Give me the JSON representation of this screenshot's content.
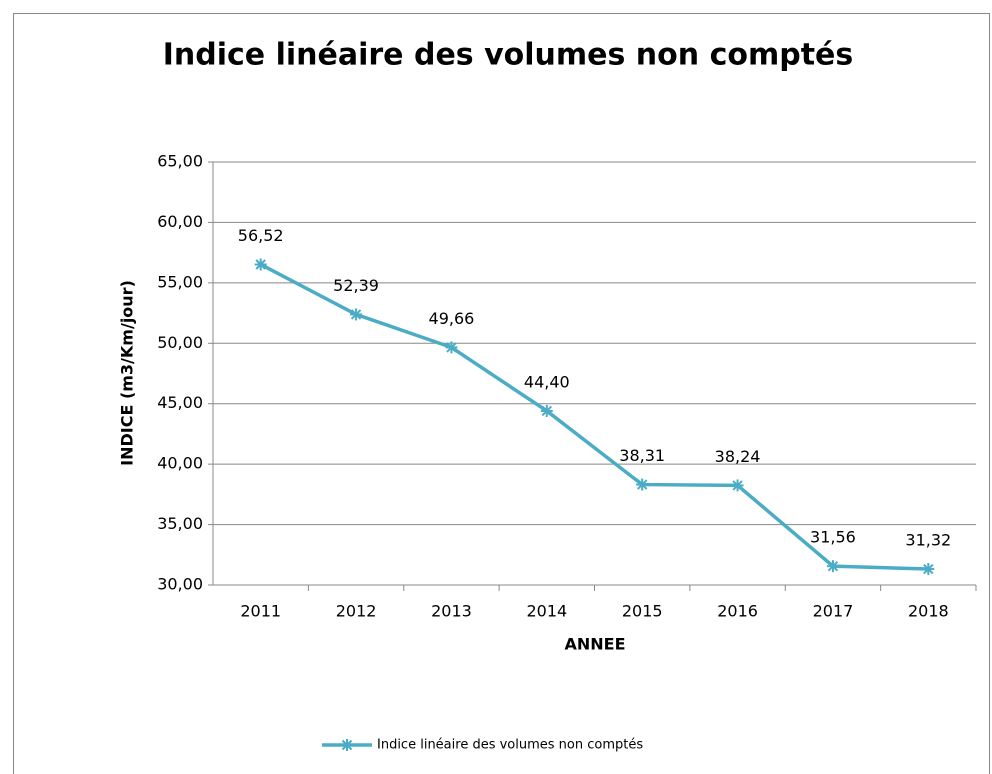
{
  "chart_data": {
    "type": "line",
    "title": "Indice linéaire des volumes non comptés",
    "x_label": "ANNEE",
    "y_label": "INDICE (m3/Km/jour)",
    "categories": [
      "2011",
      "2012",
      "2013",
      "2014",
      "2015",
      "2016",
      "2017",
      "2018"
    ],
    "series": [
      {
        "name": "Indice linéaire des volumes non comptés",
        "color": "#4bacc6",
        "values": [
          56.52,
          52.39,
          49.66,
          44.4,
          38.31,
          38.24,
          31.56,
          31.32
        ],
        "value_labels": [
          "56,52",
          "52,39",
          "49,66",
          "44,40",
          "38,31",
          "38,24",
          "31,56",
          "31,32"
        ]
      }
    ],
    "ylim": [
      30,
      65
    ],
    "yticks": [
      {
        "value": 30,
        "label": "30,00"
      },
      {
        "value": 35,
        "label": "35,00"
      },
      {
        "value": 40,
        "label": "40,00"
      },
      {
        "value": 45,
        "label": "45,00"
      },
      {
        "value": 50,
        "label": "50,00"
      },
      {
        "value": 55,
        "label": "55,00"
      },
      {
        "value": 60,
        "label": "60,00"
      },
      {
        "value": 65,
        "label": "65,00"
      }
    ],
    "grid": true,
    "legend": "bottom"
  }
}
